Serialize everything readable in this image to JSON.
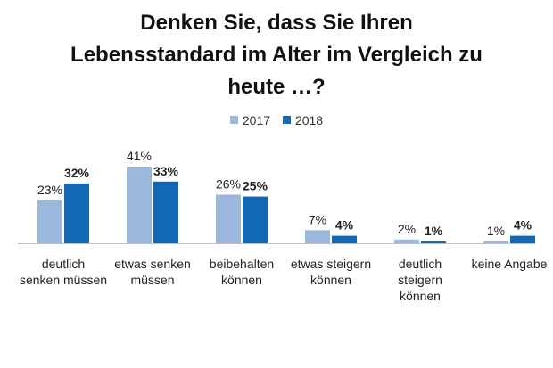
{
  "chart_data": {
    "type": "bar",
    "title": [
      "Denken Sie, dass Sie Ihren",
      "Lebensstandard im Alter im Vergleich zu",
      "heute …?"
    ],
    "categories": [
      [
        "deutlich",
        "senken müssen"
      ],
      [
        "etwas senken",
        "müssen"
      ],
      [
        "beibehalten",
        "können"
      ],
      [
        "etwas steigern",
        "können"
      ],
      [
        "deutlich",
        "steigern",
        "können"
      ],
      [
        "keine Angabe"
      ]
    ],
    "series": [
      {
        "name": "2017",
        "values": [
          23,
          41,
          26,
          7,
          2,
          1
        ],
        "labels": [
          "23%",
          "41%",
          "26%",
          "7%",
          "2%",
          "1%"
        ],
        "color": "#9bb7dc",
        "label_bold": false
      },
      {
        "name": "2018",
        "values": [
          32,
          33,
          25,
          4,
          1,
          4
        ],
        "labels": [
          "32%",
          "33%",
          "25%",
          "4%",
          "1%",
          "4%"
        ],
        "color": "#1268b4",
        "label_bold": true
      }
    ],
    "ylim": [
      0,
      41
    ],
    "legend_position": "top-center",
    "grid": false
  }
}
